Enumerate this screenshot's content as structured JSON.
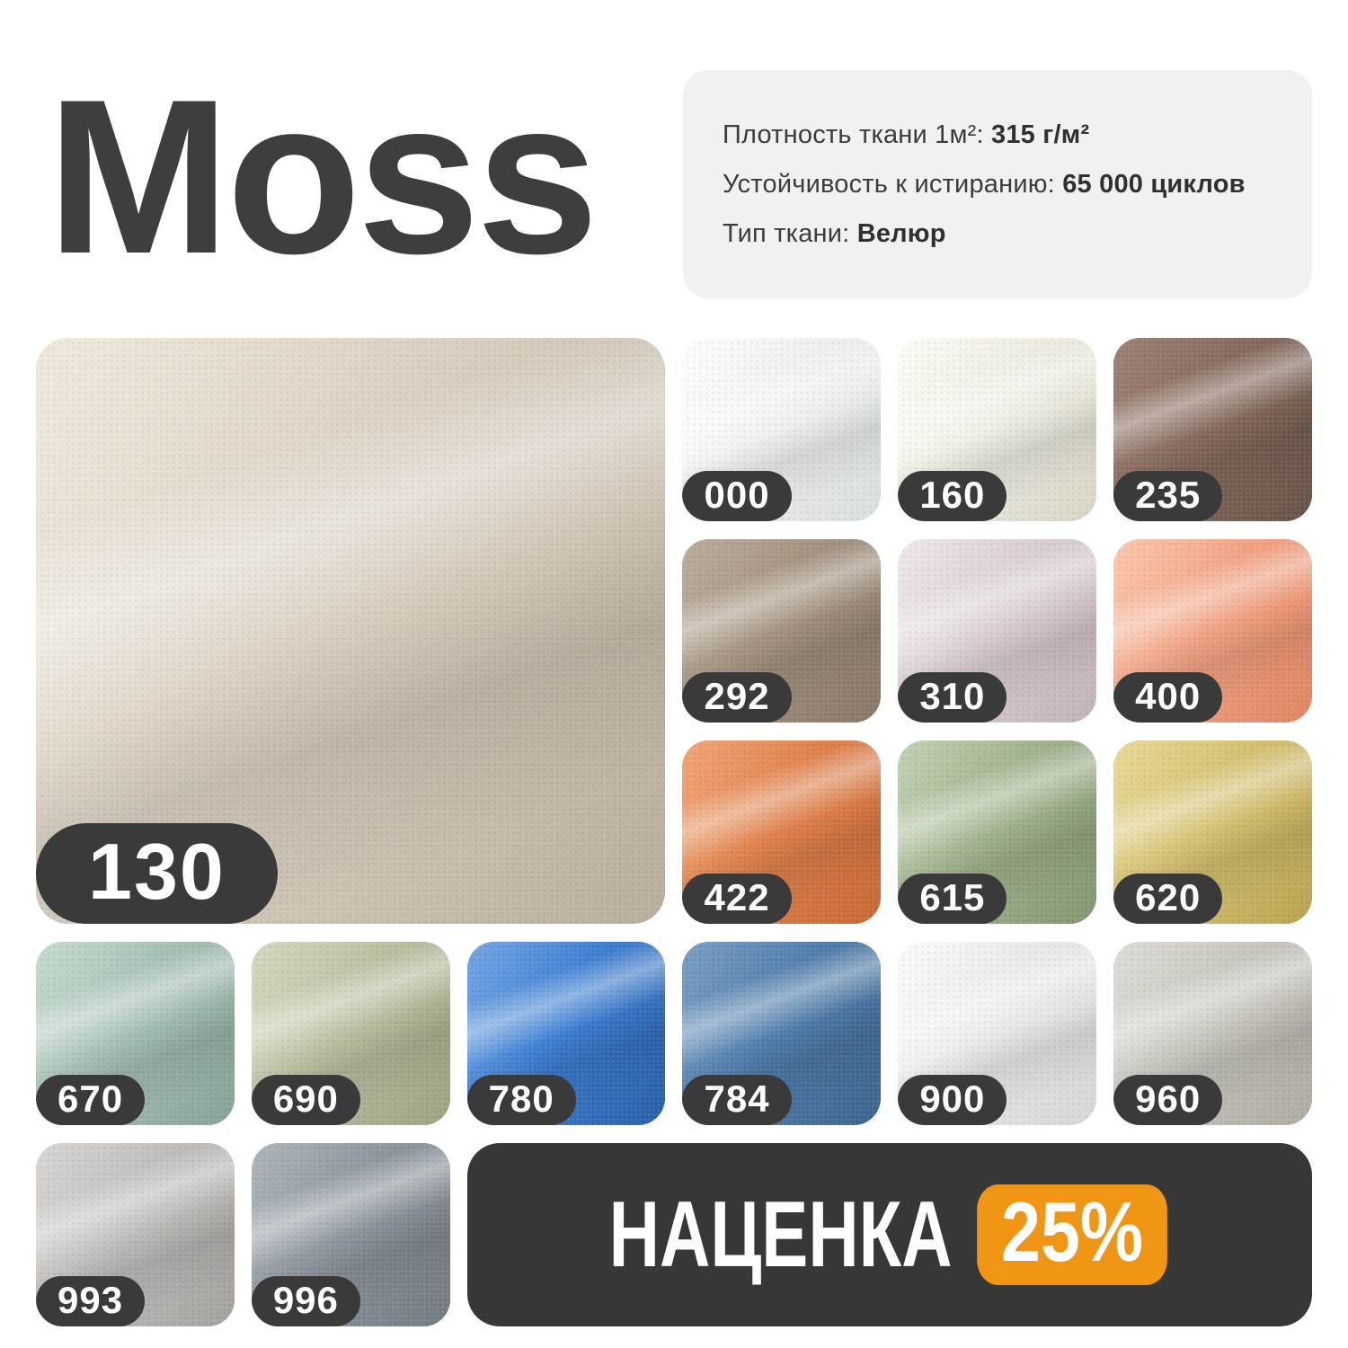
{
  "colors": {
    "page_bg": "#FFFFFF",
    "title_text": "#3E3E3E",
    "card_bg": "#F1F1F1",
    "badge_dark": "#3A3A3A",
    "promo_bg": "#373737",
    "accent_orange": "#F09514"
  },
  "header": {
    "title": "Moss",
    "specs": [
      {
        "label": "Плотность ткани 1м²:",
        "value": "315 г/м²"
      },
      {
        "label": "Устойчивость к истиранию:",
        "value": "65 000 циклов"
      },
      {
        "label": "Тип ткани:",
        "value": "Велюр"
      }
    ]
  },
  "main_swatch": {
    "code": "130",
    "colors": {
      "base": "#D8CFC0",
      "highlight": "#EEE8DC",
      "shadow": "#BDB2A0"
    }
  },
  "swatch_grid_right": [
    {
      "code": "000",
      "colors": {
        "base": "#EEF1F0",
        "highlight": "#FCFDFD",
        "shadow": "#DDE3E3"
      }
    },
    {
      "code": "160",
      "colors": {
        "base": "#EFEDE3",
        "highlight": "#FBFAF3",
        "shadow": "#DDDACA"
      }
    },
    {
      "code": "235",
      "colors": {
        "base": "#85695C",
        "highlight": "#9A7F71",
        "shadow": "#6A5349"
      }
    },
    {
      "code": "292",
      "colors": {
        "base": "#A3927F",
        "highlight": "#B9AA99",
        "shadow": "#8A7967"
      }
    },
    {
      "code": "310",
      "colors": {
        "base": "#D9CED4",
        "highlight": "#ECE5E9",
        "shadow": "#C4B7BF"
      }
    },
    {
      "code": "400",
      "colors": {
        "base": "#F2A283",
        "highlight": "#FBC5AA",
        "shadow": "#E58865"
      }
    },
    {
      "code": "422",
      "colors": {
        "base": "#E0814B",
        "highlight": "#F0A273",
        "shadow": "#CB6A36"
      }
    },
    {
      "code": "615",
      "colors": {
        "base": "#A0B38F",
        "highlight": "#BFCEAF",
        "shadow": "#859972"
      }
    },
    {
      "code": "620",
      "colors": {
        "base": "#D4C170",
        "highlight": "#E6D892",
        "shadow": "#BDA752"
      }
    }
  ],
  "swatch_row_4": [
    {
      "code": "670",
      "colors": {
        "base": "#A5C0B3",
        "highlight": "#C4D8CC",
        "shadow": "#8AA698"
      }
    },
    {
      "code": "690",
      "colors": {
        "base": "#B9C0A2",
        "highlight": "#D1D7BC",
        "shadow": "#9EA684"
      }
    },
    {
      "code": "780",
      "colors": {
        "base": "#3C7ED2",
        "highlight": "#6FA2E2",
        "shadow": "#2A60AC"
      }
    },
    {
      "code": "784",
      "colors": {
        "base": "#4F7DAB",
        "highlight": "#769BC0",
        "shadow": "#3C668F"
      }
    },
    {
      "code": "900",
      "colors": {
        "base": "#E9EBEA",
        "highlight": "#F8F9F9",
        "shadow": "#D7DBDA"
      }
    },
    {
      "code": "960",
      "colors": {
        "base": "#C9C6BF",
        "highlight": "#DCDAD4",
        "shadow": "#B2AEA5"
      }
    }
  ],
  "swatch_row_5": [
    {
      "code": "993",
      "colors": {
        "base": "#C0BDBA",
        "highlight": "#D6D3D0",
        "shadow": "#A7A3A0"
      }
    },
    {
      "code": "996",
      "colors": {
        "base": "#8D969D",
        "highlight": "#AAB2B8",
        "shadow": "#747D84"
      }
    }
  ],
  "promo": {
    "label": "НАЦЕНКА",
    "badge_value": "25%"
  }
}
